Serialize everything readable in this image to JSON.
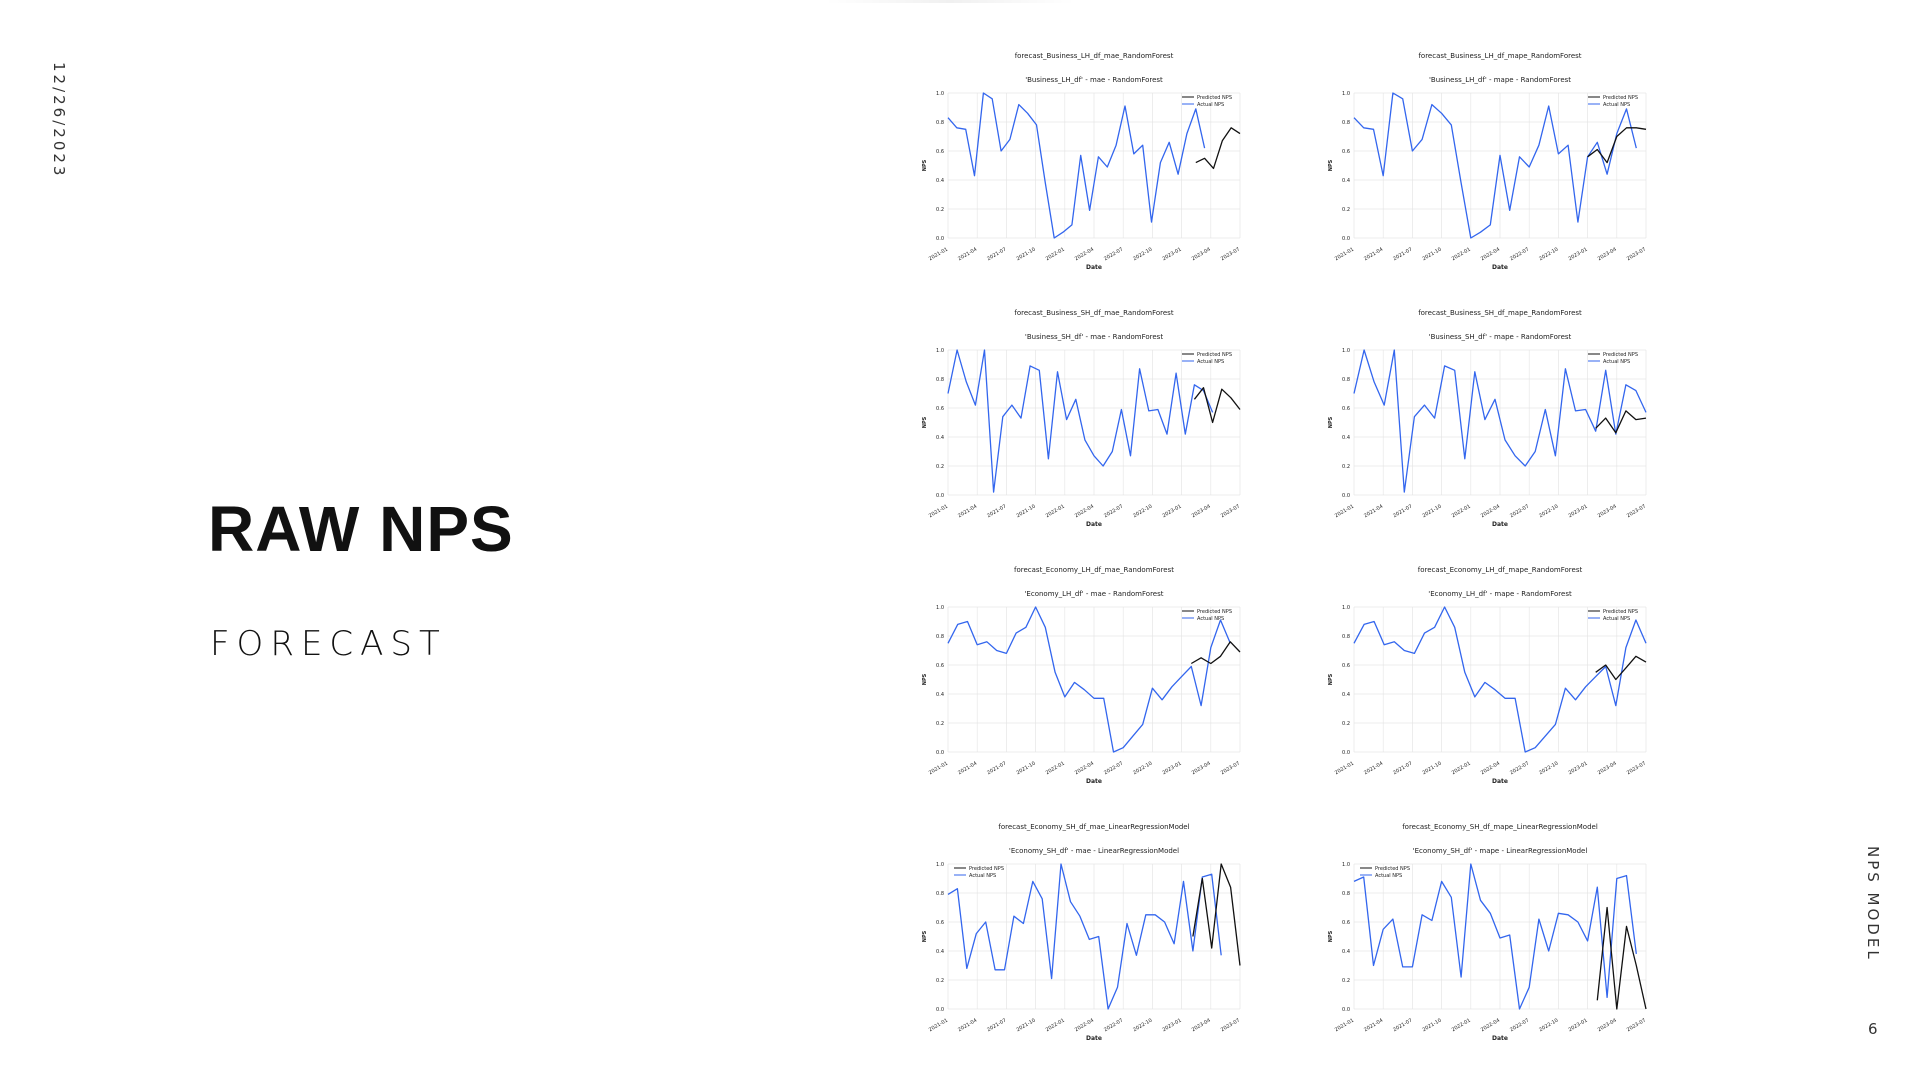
{
  "slide": {
    "date": "12/26/2023",
    "title": "RAW NPS",
    "subtitle": "FORECAST",
    "footer": "NPS MODEL",
    "page_number": "6"
  },
  "colors": {
    "actual": "#3366ee",
    "predicted": "#111111",
    "grid": "#e6e6e6"
  },
  "chart_data": [
    {
      "type": "line",
      "title": "forecast_Business_LH_df_mae_RandomForest",
      "subtitle": "'Business_LH_df' - mae - RandomForest",
      "xlabel": "Date",
      "ylabel": "NPS",
      "x_ticks": [
        "2021-01",
        "2021-04",
        "2021-07",
        "2021-10",
        "2022-01",
        "2022-04",
        "2022-07",
        "2022-10",
        "2023-01",
        "2023-04",
        "2023-07"
      ],
      "y_ticks": [
        "0.0",
        "0.2",
        "0.4",
        "0.6",
        "0.8",
        "1.0"
      ],
      "ylim": [
        0,
        1
      ],
      "legend": "top-right",
      "series": [
        {
          "name": "Predicted NPS",
          "role": "predicted",
          "start_index": 28,
          "values": [
            0.52,
            0.55,
            0.48,
            0.67,
            0.76,
            0.72
          ]
        },
        {
          "name": "Actual NPS",
          "role": "actual",
          "start_index": 0,
          "values": [
            0.83,
            0.76,
            0.75,
            0.43,
            1.0,
            0.96,
            0.6,
            0.68,
            0.92,
            0.86,
            0.78,
            0.38,
            0.0,
            0.04,
            0.09,
            0.57,
            0.19,
            0.56,
            0.49,
            0.64,
            0.91,
            0.58,
            0.64,
            0.11,
            0.52,
            0.66,
            0.44,
            0.72,
            0.89,
            0.62
          ]
        }
      ]
    },
    {
      "type": "line",
      "title": "forecast_Business_LH_df_mape_RandomForest",
      "subtitle": "'Business_LH_df' - mape - RandomForest",
      "xlabel": "Date",
      "ylabel": "NPS",
      "x_ticks": [
        "2021-01",
        "2021-04",
        "2021-07",
        "2021-10",
        "2022-01",
        "2022-04",
        "2022-07",
        "2022-10",
        "2023-01",
        "2023-04",
        "2023-07"
      ],
      "y_ticks": [
        "0.0",
        "0.2",
        "0.4",
        "0.6",
        "0.8",
        "1.0"
      ],
      "ylim": [
        0,
        1
      ],
      "legend": "top-right",
      "series": [
        {
          "name": "Predicted NPS",
          "role": "predicted",
          "start_index": 24,
          "values": [
            0.56,
            0.61,
            0.52,
            0.7,
            0.76,
            0.76,
            0.75
          ]
        },
        {
          "name": "Actual NPS",
          "role": "actual",
          "start_index": 0,
          "values": [
            0.83,
            0.76,
            0.75,
            0.43,
            1.0,
            0.96,
            0.6,
            0.68,
            0.92,
            0.86,
            0.78,
            0.38,
            0.0,
            0.04,
            0.09,
            0.57,
            0.19,
            0.56,
            0.49,
            0.64,
            0.91,
            0.58,
            0.64,
            0.11,
            0.56,
            0.66,
            0.44,
            0.72,
            0.89,
            0.62
          ]
        }
      ]
    },
    {
      "type": "line",
      "title": "forecast_Business_SH_df_mae_RandomForest",
      "subtitle": "'Business_SH_df' - mae - RandomForest",
      "xlabel": "Date",
      "ylabel": "NPS",
      "x_ticks": [
        "2021-01",
        "2021-04",
        "2021-07",
        "2021-10",
        "2022-01",
        "2022-04",
        "2022-07",
        "2022-10",
        "2023-01",
        "2023-04",
        "2023-07"
      ],
      "y_ticks": [
        "0.0",
        "0.2",
        "0.4",
        "0.6",
        "0.8",
        "1.0"
      ],
      "ylim": [
        0,
        1
      ],
      "legend": "top-right",
      "series": [
        {
          "name": "Predicted NPS",
          "role": "predicted",
          "start_index": 27,
          "values": [
            0.66,
            0.74,
            0.5,
            0.73,
            0.67,
            0.59
          ]
        },
        {
          "name": "Actual NPS",
          "role": "actual",
          "start_index": 0,
          "values": [
            0.7,
            1.0,
            0.78,
            0.62,
            1.0,
            0.02,
            0.54,
            0.62,
            0.53,
            0.89,
            0.86,
            0.25,
            0.85,
            0.52,
            0.66,
            0.38,
            0.27,
            0.2,
            0.3,
            0.59,
            0.27,
            0.87,
            0.58,
            0.59,
            0.42,
            0.84,
            0.42,
            0.76,
            0.72,
            0.57
          ]
        }
      ]
    },
    {
      "type": "line",
      "title": "forecast_Business_SH_df_mape_RandomForest",
      "subtitle": "'Business_SH_df' - mape - RandomForest",
      "xlabel": "Date",
      "ylabel": "NPS",
      "x_ticks": [
        "2021-01",
        "2021-04",
        "2021-07",
        "2021-10",
        "2022-01",
        "2022-04",
        "2022-07",
        "2022-10",
        "2023-01",
        "2023-04",
        "2023-07"
      ],
      "y_ticks": [
        "0.0",
        "0.2",
        "0.4",
        "0.6",
        "0.8",
        "1.0"
      ],
      "ylim": [
        0,
        1
      ],
      "legend": "top-right",
      "series": [
        {
          "name": "Predicted NPS",
          "role": "predicted",
          "start_index": 24,
          "values": [
            0.46,
            0.53,
            0.43,
            0.58,
            0.52,
            0.53
          ]
        },
        {
          "name": "Actual NPS",
          "role": "actual",
          "start_index": 0,
          "values": [
            0.7,
            1.0,
            0.78,
            0.62,
            1.0,
            0.02,
            0.54,
            0.62,
            0.53,
            0.89,
            0.86,
            0.25,
            0.85,
            0.52,
            0.66,
            0.38,
            0.27,
            0.2,
            0.3,
            0.59,
            0.27,
            0.87,
            0.58,
            0.59,
            0.44,
            0.86,
            0.42,
            0.76,
            0.72,
            0.57
          ]
        }
      ]
    },
    {
      "type": "line",
      "title": "forecast_Economy_LH_df_mae_RandomForest",
      "subtitle": "'Economy_LH_df' - mae - RandomForest",
      "xlabel": "Date",
      "ylabel": "NPS",
      "x_ticks": [
        "2021-01",
        "2021-04",
        "2021-07",
        "2021-10",
        "2022-01",
        "2022-04",
        "2022-07",
        "2022-10",
        "2023-01",
        "2023-04",
        "2023-07"
      ],
      "y_ticks": [
        "0.0",
        "0.2",
        "0.4",
        "0.6",
        "0.8",
        "1.0"
      ],
      "ylim": [
        0,
        1
      ],
      "legend": "top-right",
      "series": [
        {
          "name": "Predicted NPS",
          "role": "predicted",
          "start_index": 25,
          "values": [
            0.61,
            0.65,
            0.61,
            0.66,
            0.76,
            0.69
          ]
        },
        {
          "name": "Actual NPS",
          "role": "actual",
          "start_index": 0,
          "values": [
            0.75,
            0.88,
            0.9,
            0.74,
            0.76,
            0.7,
            0.68,
            0.82,
            0.86,
            1.0,
            0.86,
            0.55,
            0.38,
            0.48,
            0.43,
            0.37,
            0.37,
            0.0,
            0.03,
            0.11,
            0.19,
            0.44,
            0.36,
            0.45,
            0.52,
            0.59,
            0.32,
            0.72,
            0.91,
            0.75
          ]
        }
      ]
    },
    {
      "type": "line",
      "title": "forecast_Economy_LH_df_mape_RandomForest",
      "subtitle": "'Economy_LH_df' - mape - RandomForest",
      "xlabel": "Date",
      "ylabel": "NPS",
      "x_ticks": [
        "2021-01",
        "2021-04",
        "2021-07",
        "2021-10",
        "2022-01",
        "2022-04",
        "2022-07",
        "2022-10",
        "2023-01",
        "2023-04",
        "2023-07"
      ],
      "y_ticks": [
        "0.0",
        "0.2",
        "0.4",
        "0.6",
        "0.8",
        "1.0"
      ],
      "ylim": [
        0,
        1
      ],
      "legend": "top-right",
      "series": [
        {
          "name": "Predicted NPS",
          "role": "predicted",
          "start_index": 24,
          "values": [
            0.55,
            0.6,
            0.5,
            0.58,
            0.66,
            0.62
          ]
        },
        {
          "name": "Actual NPS",
          "role": "actual",
          "start_index": 0,
          "values": [
            0.75,
            0.88,
            0.9,
            0.74,
            0.76,
            0.7,
            0.68,
            0.82,
            0.86,
            1.0,
            0.86,
            0.55,
            0.38,
            0.48,
            0.43,
            0.37,
            0.37,
            0.0,
            0.03,
            0.11,
            0.19,
            0.44,
            0.36,
            0.45,
            0.52,
            0.59,
            0.32,
            0.72,
            0.91,
            0.75
          ]
        }
      ]
    },
    {
      "type": "line",
      "title": "forecast_Economy_SH_df_mae_LinearRegressionModel",
      "subtitle": "'Economy_SH_df' - mae - LinearRegressionModel",
      "xlabel": "Date",
      "ylabel": "NPS",
      "x_ticks": [
        "2021-01",
        "2021-04",
        "2021-07",
        "2021-10",
        "2022-01",
        "2022-04",
        "2022-07",
        "2022-10",
        "2023-01",
        "2023-04",
        "2023-07"
      ],
      "y_ticks": [
        "0.0",
        "0.2",
        "0.4",
        "0.6",
        "0.8",
        "1.0"
      ],
      "ylim": [
        0,
        1
      ],
      "legend": "top-left",
      "series": [
        {
          "name": "Predicted NPS",
          "role": "predicted",
          "start_index": 26,
          "values": [
            0.5,
            0.9,
            0.42,
            1.0,
            0.84,
            0.3
          ]
        },
        {
          "name": "Actual NPS",
          "role": "actual",
          "start_index": 0,
          "values": [
            0.79,
            0.83,
            0.28,
            0.52,
            0.6,
            0.27,
            0.27,
            0.64,
            0.59,
            0.88,
            0.76,
            0.21,
            1.0,
            0.74,
            0.64,
            0.48,
            0.5,
            0.0,
            0.15,
            0.59,
            0.37,
            0.65,
            0.65,
            0.6,
            0.45,
            0.88,
            0.4,
            0.91,
            0.93,
            0.37
          ]
        }
      ]
    },
    {
      "type": "line",
      "title": "forecast_Economy_SH_df_mape_LinearRegressionModel",
      "subtitle": "'Economy_SH_df' - mape - LinearRegressionModel",
      "xlabel": "Date",
      "ylabel": "NPS",
      "x_ticks": [
        "2021-01",
        "2021-04",
        "2021-07",
        "2021-10",
        "2022-01",
        "2022-04",
        "2022-07",
        "2022-10",
        "2023-01",
        "2023-04",
        "2023-07"
      ],
      "y_ticks": [
        "0.0",
        "0.2",
        "0.4",
        "0.6",
        "0.8",
        "1.0"
      ],
      "ylim": [
        0,
        1
      ],
      "legend": "top-left",
      "series": [
        {
          "name": "Predicted NPS",
          "role": "predicted",
          "start_index": 25,
          "values": [
            0.06,
            0.7,
            0.0,
            0.57,
            0.3,
            0.0
          ]
        },
        {
          "name": "Actual NPS",
          "role": "actual",
          "start_index": 0,
          "values": [
            0.88,
            0.91,
            0.3,
            0.55,
            0.62,
            0.29,
            0.29,
            0.65,
            0.61,
            0.88,
            0.77,
            0.22,
            1.0,
            0.75,
            0.66,
            0.49,
            0.51,
            0.0,
            0.15,
            0.62,
            0.4,
            0.66,
            0.65,
            0.6,
            0.47,
            0.84,
            0.08,
            0.9,
            0.92,
            0.38
          ]
        }
      ]
    }
  ]
}
